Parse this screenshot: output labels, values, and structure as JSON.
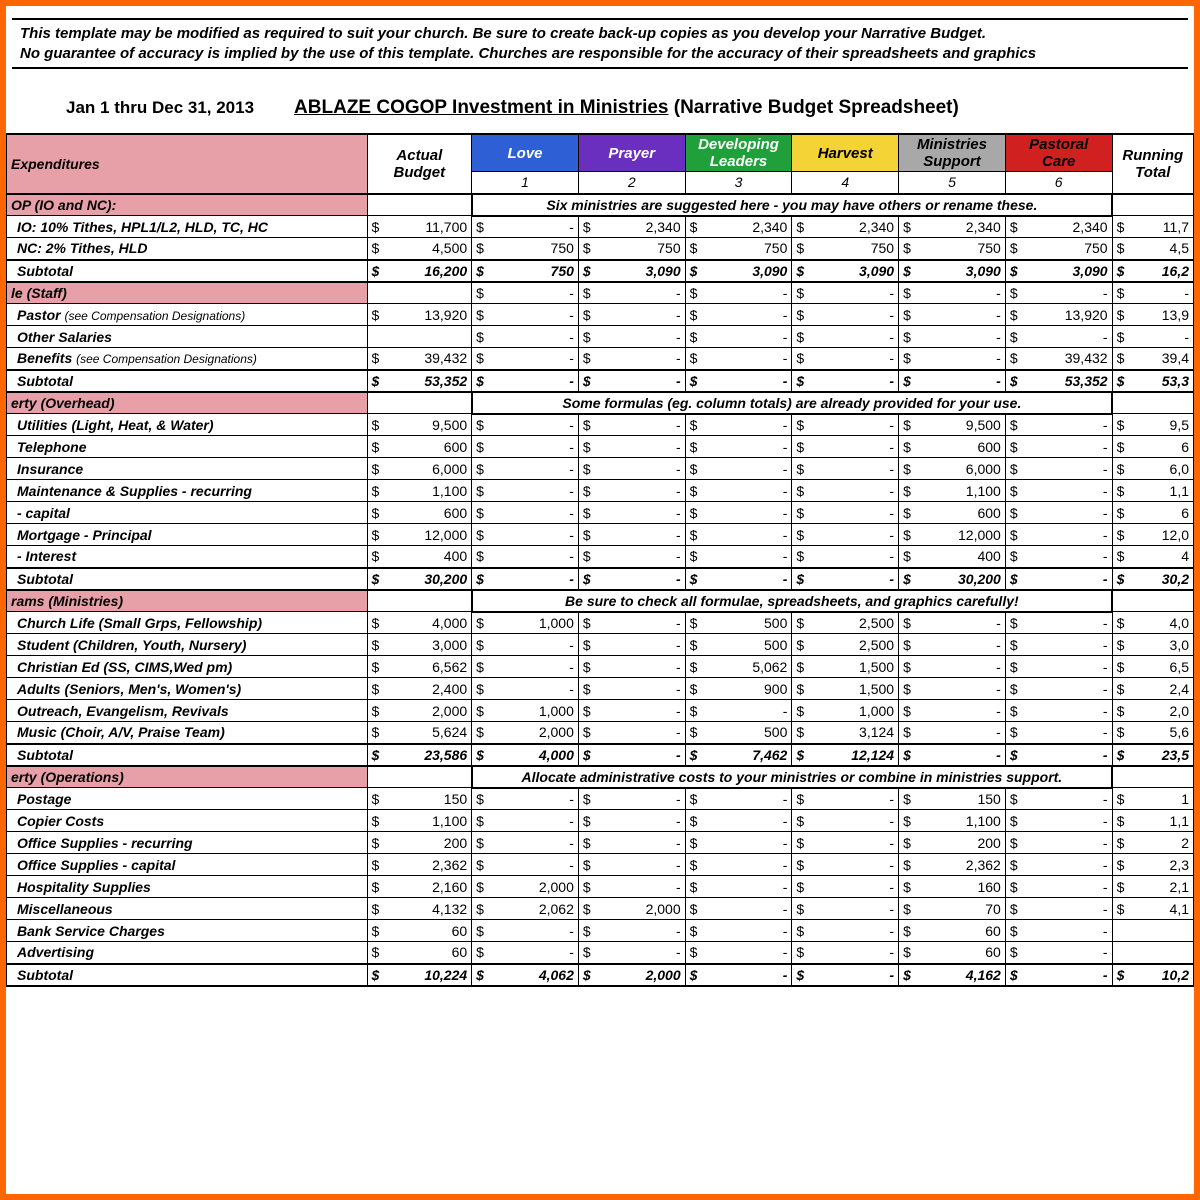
{
  "disclaimer_line1": "This template may be modified as required to suit your church.  Be sure to create back-up copies as you develop your Narrative Budget.",
  "disclaimer_line2": "No guarantee of accuracy is implied by the use of this template.  Churches are responsible for the accuracy of their spreadsheets and graphics",
  "date_range": "Jan 1 thru Dec 31, 2013",
  "title_underline": "ABLAZE COGOP  Investment in Ministries",
  "title_rest": " (Narrative Budget Spreadsheet)",
  "columns": {
    "expenditures": "Expenditures",
    "actual_budget": "Actual Budget",
    "running_total": "Running Total",
    "cats": [
      {
        "label": "Love",
        "bg": "#2e5fd4",
        "fg": "#ffffff",
        "idx": "1"
      },
      {
        "label": "Prayer",
        "bg": "#6a2fbf",
        "fg": "#ffffff",
        "idx": "2"
      },
      {
        "label": "Developing Leaders",
        "bg": "#1fa03a",
        "fg": "#ffffff",
        "idx": "3"
      },
      {
        "label": "Harvest",
        "bg": "#f3d335",
        "fg": "#000000",
        "idx": "4"
      },
      {
        "label": "Ministries Support",
        "bg": "#a8a8a8",
        "fg": "#000000",
        "idx": "5"
      },
      {
        "label": "Pastoral Care",
        "bg": "#d02020",
        "fg": "#000000",
        "idx": "6"
      }
    ]
  },
  "banners": {
    "b1": "Six ministries are suggested here - you may have others or rename these.",
    "b2": "Some formulas (eg. column totals) are already provided for your use.",
    "b3": "Be sure to check all formulae, spreadsheets, and graphics carefully!",
    "b4": "Allocate administrative costs to your ministries or combine in ministries support."
  },
  "sections": [
    {
      "header": "OP (IO and NC):",
      "banner": "b1",
      "rows": [
        {
          "label": "IO: 10% Tithes, HPL1/L2, HLD, TC, HC",
          "vals": [
            "11,700",
            "-",
            "2,340",
            "2,340",
            "2,340",
            "2,340",
            "2,340",
            "11,7"
          ]
        },
        {
          "label": "NC: 2% Tithes, HLD",
          "vals": [
            "4,500",
            "750",
            "750",
            "750",
            "750",
            "750",
            "750",
            "4,5"
          ]
        }
      ],
      "subtotal": {
        "label": "Subtotal",
        "vals": [
          "16,200",
          "750",
          "3,090",
          "3,090",
          "3,090",
          "3,090",
          "3,090",
          "16,2"
        ]
      }
    },
    {
      "header": "le (Staff)",
      "rows": [
        {
          "label": "Pastor ",
          "note": "(see Compensation Designations)",
          "vals": [
            "13,920",
            "-",
            "-",
            "-",
            "-",
            "-",
            "13,920",
            "13,9"
          ],
          "firstvals": [
            "-",
            "-",
            "-",
            "-",
            "-",
            "-",
            "-"
          ]
        },
        {
          "label": "Other Salaries",
          "vals": [
            "",
            "-",
            "-",
            "-",
            "-",
            "-",
            "-",
            "-"
          ]
        },
        {
          "label": "Benefits ",
          "note": "(see Compensation Designations)",
          "vals": [
            "39,432",
            "-",
            "-",
            "-",
            "-",
            "-",
            "39,432",
            "39,4"
          ]
        }
      ],
      "subtotal": {
        "label": "Subtotal",
        "vals": [
          "53,352",
          "-",
          "-",
          "-",
          "-",
          "-",
          "53,352",
          "53,3"
        ]
      }
    },
    {
      "header": "erty (Overhead)",
      "banner": "b2",
      "rows": [
        {
          "label": "Utilities (Light, Heat, & Water)",
          "vals": [
            "9,500",
            "-",
            "-",
            "-",
            "-",
            "9,500",
            "-",
            "9,5"
          ]
        },
        {
          "label": "Telephone",
          "vals": [
            "600",
            "-",
            "-",
            "-",
            "-",
            "600",
            "-",
            "6"
          ]
        },
        {
          "label": "Insurance",
          "vals": [
            "6,000",
            "-",
            "-",
            "-",
            "-",
            "6,000",
            "-",
            "6,0"
          ]
        },
        {
          "label": "Maintenance & Supplies - recurring",
          "vals": [
            "1,100",
            "-",
            "-",
            "-",
            "-",
            "1,100",
            "-",
            "1,1"
          ]
        },
        {
          "label": "                                - capital",
          "vals": [
            "600",
            "-",
            "-",
            "-",
            "-",
            "600",
            "-",
            "6"
          ]
        },
        {
          "label": "Mortgage  - Principal",
          "vals": [
            "12,000",
            "-",
            "-",
            "-",
            "-",
            "12,000",
            "-",
            "12,0"
          ]
        },
        {
          "label": "               - Interest",
          "vals": [
            "400",
            "-",
            "-",
            "-",
            "-",
            "400",
            "-",
            "4"
          ]
        }
      ],
      "subtotal": {
        "label": "Subtotal",
        "vals": [
          "30,200",
          "-",
          "-",
          "-",
          "-",
          "30,200",
          "-",
          "30,2"
        ]
      }
    },
    {
      "header": "rams (Ministries)",
      "banner": "b3",
      "rows": [
        {
          "label": "Church Life (Small Grps, Fellowship)",
          "vals": [
            "4,000",
            "1,000",
            "-",
            "500",
            "2,500",
            "-",
            "-",
            "4,0"
          ]
        },
        {
          "label": "Student (Children, Youth, Nursery)",
          "vals": [
            "3,000",
            "-",
            "-",
            "500",
            "2,500",
            "-",
            "-",
            "3,0"
          ]
        },
        {
          "label": "Christian Ed (SS, CIMS,Wed pm)",
          "vals": [
            "6,562",
            "-",
            "-",
            "5,062",
            "1,500",
            "-",
            "-",
            "6,5"
          ]
        },
        {
          "label": "Adults (Seniors, Men's, Women's)",
          "vals": [
            "2,400",
            "-",
            "-",
            "900",
            "1,500",
            "-",
            "-",
            "2,4"
          ]
        },
        {
          "label": "Outreach, Evangelism, Revivals",
          "vals": [
            "2,000",
            "1,000",
            "-",
            "-",
            "1,000",
            "-",
            "-",
            "2,0"
          ]
        },
        {
          "label": "Music (Choir, A/V, Praise Team)",
          "vals": [
            "5,624",
            "2,000",
            "-",
            "500",
            "3,124",
            "-",
            "-",
            "5,6"
          ]
        }
      ],
      "subtotal": {
        "label": "Subtotal",
        "vals": [
          "23,586",
          "4,000",
          "-",
          "7,462",
          "12,124",
          "-",
          "-",
          "23,5"
        ]
      }
    },
    {
      "header": "erty (Operations)",
      "banner": "b4",
      "rows": [
        {
          "label": "Postage",
          "vals": [
            "150",
            "-",
            "-",
            "-",
            "-",
            "150",
            "-",
            "1"
          ]
        },
        {
          "label": "Copier Costs",
          "vals": [
            "1,100",
            "-",
            "-",
            "-",
            "-",
            "1,100",
            "-",
            "1,1"
          ]
        },
        {
          "label": "Office Supplies - recurring",
          "vals": [
            "200",
            "-",
            "-",
            "-",
            "-",
            "200",
            "-",
            "2"
          ]
        },
        {
          "label": "Office Supplies - capital",
          "vals": [
            "2,362",
            "-",
            "-",
            "-",
            "-",
            "2,362",
            "-",
            "2,3"
          ]
        },
        {
          "label": "Hospitality Supplies",
          "vals": [
            "2,160",
            "2,000",
            "-",
            "-",
            "-",
            "160",
            "-",
            "2,1"
          ]
        },
        {
          "label": "Miscellaneous",
          "vals": [
            "4,132",
            "2,062",
            "2,000",
            "-",
            "-",
            "70",
            "-",
            "4,1"
          ]
        },
        {
          "label": "Bank Service Charges",
          "vals": [
            "60",
            "-",
            "-",
            "-",
            "-",
            "60",
            "-",
            ""
          ]
        },
        {
          "label": "Advertising",
          "vals": [
            "60",
            "-",
            "-",
            "-",
            "-",
            "60",
            "-",
            ""
          ]
        }
      ],
      "subtotal": {
        "label": "Subtotal",
        "vals": [
          "10,224",
          "4,062",
          "2,000",
          "-",
          "-",
          "4,162",
          "-",
          "10,2"
        ]
      }
    }
  ]
}
